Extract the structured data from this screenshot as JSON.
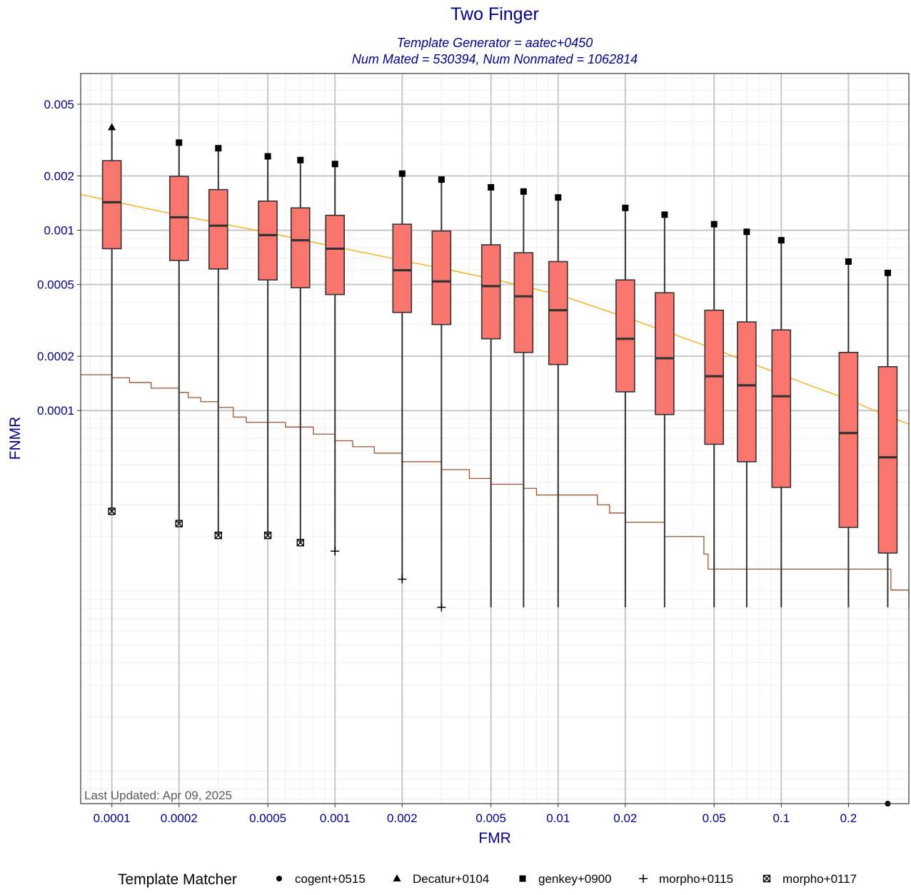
{
  "chart_data": {
    "type": "boxplot",
    "title": "Two Finger",
    "subtitle_lines": [
      "Template Generator = aatec+0450",
      "Num Mated = 530394, Num Nonmated = 1062814"
    ],
    "xlabel": "FMR",
    "ylabel": "FNMR",
    "x_scale": "log10",
    "y_scale": "log10",
    "xlim": [
      7.25e-05,
      0.373
    ],
    "ylim": [
      6.6e-07,
      0.0074
    ],
    "x_ticks": [
      0.0001,
      0.0002,
      0.0005,
      0.001,
      0.002,
      0.005,
      0.01,
      0.02,
      0.05,
      0.1,
      0.2
    ],
    "x_tick_labels": [
      "0.0001",
      "0.0002",
      "0.0005",
      "0.001",
      "0.002",
      "0.005",
      "0.01",
      "0.02",
      "0.05",
      "0.1",
      "0.2"
    ],
    "y_ticks": [
      0.0001,
      0.0002,
      0.0005,
      0.001,
      0.002,
      0.005
    ],
    "y_tick_labels": [
      "0.0001",
      "0.0002",
      "0.0005",
      "0.001",
      "0.002",
      "0.005"
    ],
    "grid": true,
    "legend_title": "Template Matcher",
    "legend_position": "bottom",
    "legend": [
      {
        "name": "cogent+0515",
        "shape": "circle"
      },
      {
        "name": "Decatur+0104",
        "shape": "triangle"
      },
      {
        "name": "genkey+0900",
        "shape": "square"
      },
      {
        "name": "morpho+0115",
        "shape": "plus"
      },
      {
        "name": "morpho+0117",
        "shape": "boxed-x"
      }
    ],
    "box_fill": "#f8766d",
    "boxes": [
      {
        "fmr": 0.0001,
        "whisker_low": 2.76e-05,
        "q1": 0.00079,
        "median": 0.00143,
        "q3": 0.00243,
        "whisker_high": 0.00372
      },
      {
        "fmr": 0.0002,
        "whisker_low": 2.36e-05,
        "q1": 0.00068,
        "median": 0.00118,
        "q3": 0.00199,
        "whisker_high": 0.00306
      },
      {
        "fmr": 0.0003,
        "whisker_low": 2.03e-05,
        "q1": 0.00061,
        "median": 0.00106,
        "q3": 0.00168,
        "whisker_high": 0.00285
      },
      {
        "fmr": 0.0005,
        "whisker_low": 2.03e-05,
        "q1": 0.00053,
        "median": 0.00094,
        "q3": 0.00145,
        "whisker_high": 0.00257
      },
      {
        "fmr": 0.0007,
        "whisker_low": 1.85e-05,
        "q1": 0.00048,
        "median": 0.00088,
        "q3": 0.00133,
        "whisker_high": 0.00245
      },
      {
        "fmr": 0.001,
        "whisker_low": 1.66e-05,
        "q1": 0.00044,
        "median": 0.00079,
        "q3": 0.00121,
        "whisker_high": 0.00233
      },
      {
        "fmr": 0.002,
        "whisker_low": 1.16e-05,
        "q1": 0.00035,
        "median": 0.0006,
        "q3": 0.00108,
        "whisker_high": 0.00206
      },
      {
        "fmr": 0.003,
        "whisker_low": 8.1e-06,
        "q1": 0.0003,
        "median": 0.00052,
        "q3": 0.00099,
        "whisker_high": 0.00191
      },
      {
        "fmr": 0.005,
        "whisker_low": 8.1e-06,
        "q1": 0.00025,
        "median": 0.00049,
        "q3": 0.00083,
        "whisker_high": 0.00173
      },
      {
        "fmr": 0.007,
        "whisker_low": 8.1e-06,
        "q1": 0.00021,
        "median": 0.00043,
        "q3": 0.00075,
        "whisker_high": 0.00164
      },
      {
        "fmr": 0.01,
        "whisker_low": 8.1e-06,
        "q1": 0.00018,
        "median": 0.00036,
        "q3": 0.00067,
        "whisker_high": 0.00152
      },
      {
        "fmr": 0.02,
        "whisker_low": 8.1e-06,
        "q1": 0.000127,
        "median": 0.00025,
        "q3": 0.00053,
        "whisker_high": 0.00133
      },
      {
        "fmr": 0.03,
        "whisker_low": 8.1e-06,
        "q1": 9.5e-05,
        "median": 0.000195,
        "q3": 0.00045,
        "whisker_high": 0.00122
      },
      {
        "fmr": 0.05,
        "whisker_low": 8.1e-06,
        "q1": 6.5e-05,
        "median": 0.000155,
        "q3": 0.00036,
        "whisker_high": 0.00108
      },
      {
        "fmr": 0.07,
        "whisker_low": 8.1e-06,
        "q1": 5.2e-05,
        "median": 0.000138,
        "q3": 0.00031,
        "whisker_high": 0.00098
      },
      {
        "fmr": 0.1,
        "whisker_low": 8.1e-06,
        "q1": 3.75e-05,
        "median": 0.00012,
        "q3": 0.00028,
        "whisker_high": 0.00088
      },
      {
        "fmr": 0.2,
        "whisker_low": 8.1e-06,
        "q1": 2.25e-05,
        "median": 7.5e-05,
        "q3": 0.00021,
        "whisker_high": 0.00067
      },
      {
        "fmr": 0.3,
        "whisker_low": 8.1e-06,
        "q1": 1.62e-05,
        "median": 5.5e-05,
        "q3": 0.000175,
        "whisker_high": 0.00058
      }
    ],
    "points": [
      {
        "matcher": "Decatur+0104",
        "shape": "triangle",
        "fmr": 0.0001,
        "fnmr": 0.00372
      },
      {
        "matcher": "genkey+0900",
        "shape": "square",
        "fmr": 0.0002,
        "fnmr": 0.00306
      },
      {
        "matcher": "genkey+0900",
        "shape": "square",
        "fmr": 0.0003,
        "fnmr": 0.00285
      },
      {
        "matcher": "genkey+0900",
        "shape": "square",
        "fmr": 0.0005,
        "fnmr": 0.00257
      },
      {
        "matcher": "genkey+0900",
        "shape": "square",
        "fmr": 0.0007,
        "fnmr": 0.00245
      },
      {
        "matcher": "genkey+0900",
        "shape": "square",
        "fmr": 0.001,
        "fnmr": 0.00233
      },
      {
        "matcher": "genkey+0900",
        "shape": "square",
        "fmr": 0.002,
        "fnmr": 0.00206
      },
      {
        "matcher": "genkey+0900",
        "shape": "square",
        "fmr": 0.003,
        "fnmr": 0.00191
      },
      {
        "matcher": "genkey+0900",
        "shape": "square",
        "fmr": 0.005,
        "fnmr": 0.00173
      },
      {
        "matcher": "genkey+0900",
        "shape": "square",
        "fmr": 0.007,
        "fnmr": 0.00164
      },
      {
        "matcher": "genkey+0900",
        "shape": "square",
        "fmr": 0.01,
        "fnmr": 0.00152
      },
      {
        "matcher": "genkey+0900",
        "shape": "square",
        "fmr": 0.02,
        "fnmr": 0.00133
      },
      {
        "matcher": "genkey+0900",
        "shape": "square",
        "fmr": 0.03,
        "fnmr": 0.00122
      },
      {
        "matcher": "genkey+0900",
        "shape": "square",
        "fmr": 0.05,
        "fnmr": 0.00108
      },
      {
        "matcher": "genkey+0900",
        "shape": "square",
        "fmr": 0.07,
        "fnmr": 0.00098
      },
      {
        "matcher": "genkey+0900",
        "shape": "square",
        "fmr": 0.1,
        "fnmr": 0.00088
      },
      {
        "matcher": "genkey+0900",
        "shape": "square",
        "fmr": 0.2,
        "fnmr": 0.00067
      },
      {
        "matcher": "genkey+0900",
        "shape": "square",
        "fmr": 0.3,
        "fnmr": 0.00058
      },
      {
        "matcher": "morpho+0117",
        "shape": "boxed-x",
        "fmr": 0.0001,
        "fnmr": 2.76e-05
      },
      {
        "matcher": "morpho+0117",
        "shape": "boxed-x",
        "fmr": 0.0002,
        "fnmr": 2.36e-05
      },
      {
        "matcher": "morpho+0117",
        "shape": "boxed-x",
        "fmr": 0.0003,
        "fnmr": 2.03e-05
      },
      {
        "matcher": "morpho+0117",
        "shape": "boxed-x",
        "fmr": 0.0005,
        "fnmr": 2.03e-05
      },
      {
        "matcher": "morpho+0117",
        "shape": "boxed-x",
        "fmr": 0.0007,
        "fnmr": 1.85e-05
      },
      {
        "matcher": "morpho+0115",
        "shape": "plus",
        "fmr": 0.001,
        "fnmr": 1.66e-05
      },
      {
        "matcher": "morpho+0115",
        "shape": "plus",
        "fmr": 0.002,
        "fnmr": 1.16e-05
      },
      {
        "matcher": "morpho+0115",
        "shape": "plus",
        "fmr": 0.003,
        "fnmr": 8.1e-06
      },
      {
        "matcher": "cogent+0515",
        "shape": "circle",
        "fmr": 0.3,
        "fnmr": 6.6e-07
      }
    ],
    "lines": [
      {
        "color": "#ffa500",
        "style": "straight",
        "x": [
          7.25e-05,
          0.0001,
          0.0002,
          0.0005,
          0.001,
          0.002,
          0.005,
          0.01,
          0.02,
          0.05,
          0.1,
          0.2,
          0.3,
          0.373
        ],
        "y": [
          0.00158,
          0.00145,
          0.00121,
          0.00097,
          0.00081,
          0.00068,
          0.00054,
          0.00044,
          0.00033,
          0.00022,
          0.000158,
          0.000115,
          9.3e-05,
          8.4e-05
        ]
      },
      {
        "color": "#a0522d",
        "style": "step",
        "x": [
          7.25e-05,
          0.0001,
          0.00012,
          0.00015,
          0.0002,
          0.00022,
          0.00025,
          0.0003,
          0.00035,
          0.0004,
          0.0006,
          0.0008,
          0.001,
          0.0012,
          0.0015,
          0.002,
          0.003,
          0.004,
          0.005,
          0.007,
          0.008,
          0.015,
          0.017,
          0.02,
          0.03,
          0.045,
          0.047,
          0.3,
          0.31,
          0.373
        ],
        "y": [
          0.000158,
          0.000152,
          0.000143,
          0.000133,
          0.000126,
          0.000118,
          0.000112,
          0.000104,
          9.2e-05,
          8.6e-05,
          8.1e-05,
          7.4e-05,
          6.8e-05,
          6.3e-05,
          5.8e-05,
          5.2e-05,
          4.7e-05,
          4.2e-05,
          3.9e-05,
          3.7e-05,
          3.4e-05,
          3e-05,
          2.7e-05,
          2.4e-05,
          2e-05,
          1.6e-05,
          1.32e-05,
          1.32e-05,
          1.01e-05,
          8.1e-06
        ]
      }
    ],
    "annotation": "Last Updated: Apr 09, 2025"
  }
}
